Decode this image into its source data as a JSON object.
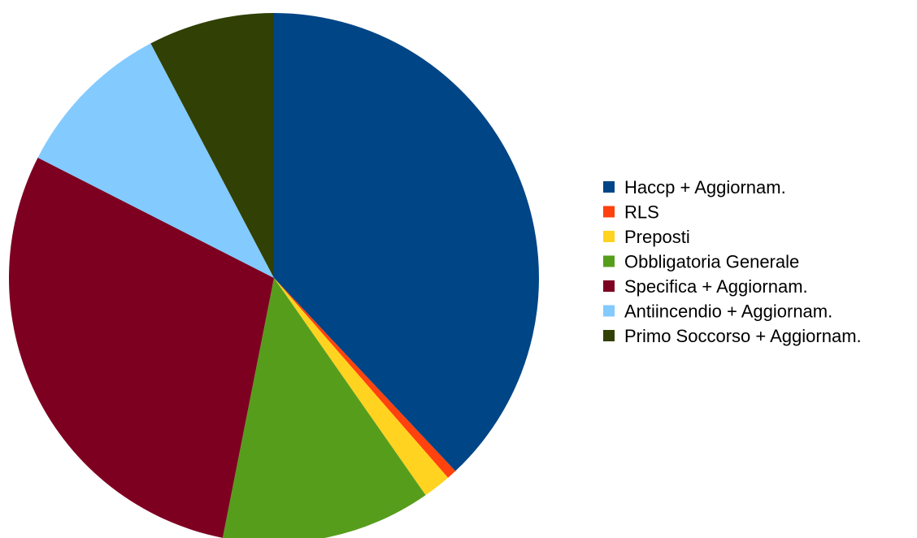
{
  "chart_data": {
    "type": "pie",
    "title": "",
    "legend_position": "right",
    "slices": [
      {
        "label": "Haccp + Aggiornam.",
        "value": 38.0,
        "color": "#004586"
      },
      {
        "label": "RLS",
        "value": 0.6,
        "color": "#ff420e"
      },
      {
        "label": "Preposti",
        "value": 1.7,
        "color": "#ffd320"
      },
      {
        "label": "Obbligatoria Generale",
        "value": 12.8,
        "color": "#579d1c"
      },
      {
        "label": "Specifica + Aggiornam.",
        "value": 29.4,
        "color": "#7e0021"
      },
      {
        "label": "Antiincendio + Aggiornam.",
        "value": 9.8,
        "color": "#83caff"
      },
      {
        "label": "Primo Soccorso + Aggiornam.",
        "value": 7.7,
        "color": "#314004"
      }
    ]
  }
}
